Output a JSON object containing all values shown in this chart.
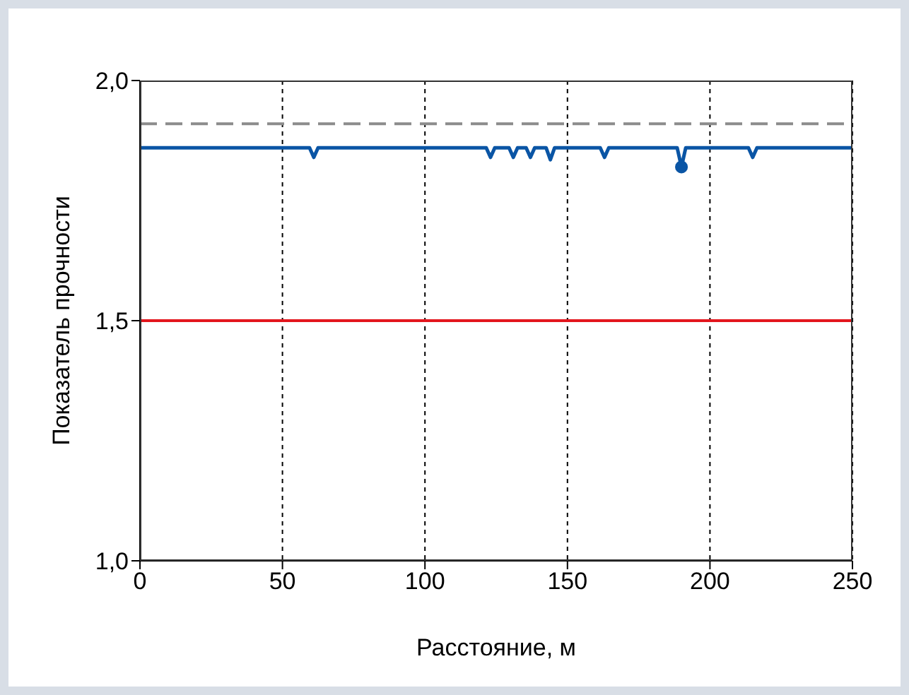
{
  "chart_data": {
    "type": "line",
    "xlabel": "Расстояние, м",
    "ylabel": "Показатель прочности",
    "xlim": [
      0,
      250
    ],
    "xticks": [
      0,
      50,
      100,
      150,
      200,
      250
    ],
    "ylim": [
      1.0,
      2.0
    ],
    "yticks": [
      {
        "value": 1.0,
        "label": "1,0"
      },
      {
        "value": 1.5,
        "label": "1,5"
      },
      {
        "value": 2.0,
        "label": "2,0"
      }
    ],
    "grid": "x",
    "marker": "none",
    "line_style": "solid",
    "series": [
      {
        "color": "#0a55a5",
        "x": [
          0,
          59.5,
          61,
          62.5,
          121.5,
          123,
          124.5,
          129.5,
          131,
          132.5,
          135.5,
          137,
          138.5,
          142.5,
          144,
          145.5,
          161.5,
          163,
          164.5,
          188.5,
          190,
          191.5,
          213.5,
          215,
          216.5,
          250
        ],
        "values": [
          1.86,
          1.86,
          1.84,
          1.86,
          1.86,
          1.84,
          1.86,
          1.86,
          1.84,
          1.86,
          1.86,
          1.84,
          1.86,
          1.86,
          1.835,
          1.86,
          1.86,
          1.84,
          1.86,
          1.86,
          1.82,
          1.86,
          1.86,
          1.84,
          1.86,
          1.86
        ]
      },
      {
        "type": "scatter",
        "marker": "circle",
        "color": "#0a55a5",
        "x": [
          190
        ],
        "values": [
          1.82
        ]
      }
    ],
    "ref_lines": [
      {
        "axis": "y",
        "value": 1.91,
        "color": "#8c8c8c",
        "line_style": "dashed"
      },
      {
        "axis": "y",
        "value": 1.5,
        "color": "#e3161d",
        "line_style": "solid"
      }
    ]
  }
}
